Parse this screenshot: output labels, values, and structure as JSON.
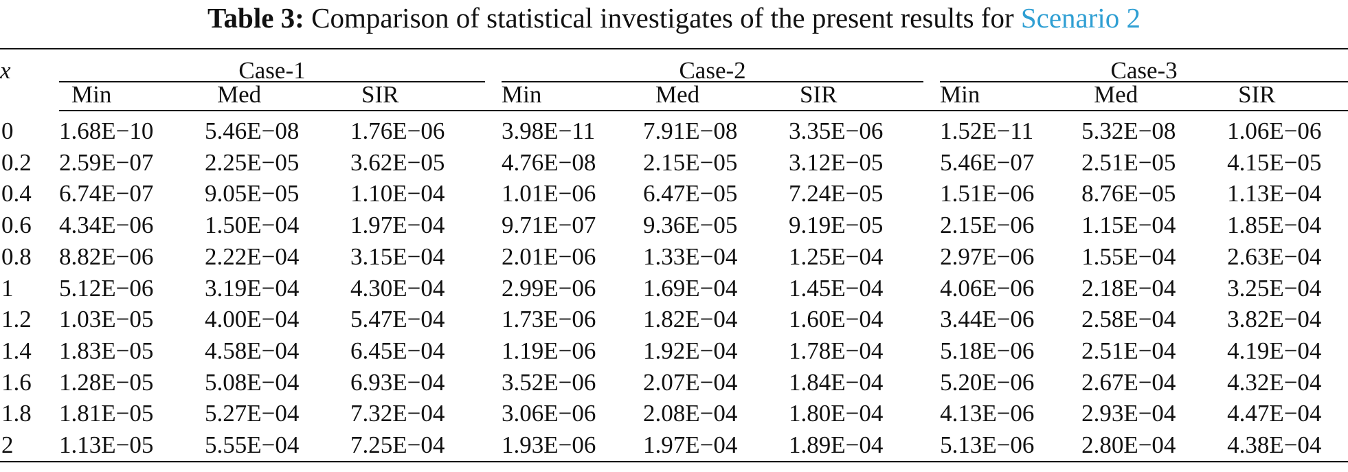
{
  "caption": {
    "label": "Table 3:",
    "text": "Comparison of statistical investigates of the present results for",
    "link": "Scenario 2"
  },
  "table": {
    "x_header": "x",
    "cases": [
      "Case-1",
      "Case-2",
      "Case-3"
    ],
    "subheaders": [
      "Min",
      "Med",
      "SIR"
    ],
    "rows": [
      {
        "x": "0",
        "values": [
          "1.68E−10",
          "5.46E−08",
          "1.76E−06",
          "3.98E−11",
          "7.91E−08",
          "3.35E−06",
          "1.52E−11",
          "5.32E−08",
          "1.06E−06"
        ]
      },
      {
        "x": "0.2",
        "values": [
          "2.59E−07",
          "2.25E−05",
          "3.62E−05",
          "4.76E−08",
          "2.15E−05",
          "3.12E−05",
          "5.46E−07",
          "2.51E−05",
          "4.15E−05"
        ]
      },
      {
        "x": "0.4",
        "values": [
          "6.74E−07",
          "9.05E−05",
          "1.10E−04",
          "1.01E−06",
          "6.47E−05",
          "7.24E−05",
          "1.51E−06",
          "8.76E−05",
          "1.13E−04"
        ]
      },
      {
        "x": "0.6",
        "values": [
          "4.34E−06",
          "1.50E−04",
          "1.97E−04",
          "9.71E−07",
          "9.36E−05",
          "9.19E−05",
          "2.15E−06",
          "1.15E−04",
          "1.85E−04"
        ]
      },
      {
        "x": "0.8",
        "values": [
          "8.82E−06",
          "2.22E−04",
          "3.15E−04",
          "2.01E−06",
          "1.33E−04",
          "1.25E−04",
          "2.97E−06",
          "1.55E−04",
          "2.63E−04"
        ]
      },
      {
        "x": "1",
        "values": [
          "5.12E−06",
          "3.19E−04",
          "4.30E−04",
          "2.99E−06",
          "1.69E−04",
          "1.45E−04",
          "4.06E−06",
          "2.18E−04",
          "3.25E−04"
        ]
      },
      {
        "x": "1.2",
        "values": [
          "1.03E−05",
          "4.00E−04",
          "5.47E−04",
          "1.73E−06",
          "1.82E−04",
          "1.60E−04",
          "3.44E−06",
          "2.58E−04",
          "3.82E−04"
        ]
      },
      {
        "x": "1.4",
        "values": [
          "1.83E−05",
          "4.58E−04",
          "6.45E−04",
          "1.19E−06",
          "1.92E−04",
          "1.78E−04",
          "5.18E−06",
          "2.51E−04",
          "4.19E−04"
        ]
      },
      {
        "x": "1.6",
        "values": [
          "1.28E−05",
          "5.08E−04",
          "6.93E−04",
          "3.52E−06",
          "2.07E−04",
          "1.84E−04",
          "5.20E−06",
          "2.67E−04",
          "4.32E−04"
        ]
      },
      {
        "x": "1.8",
        "values": [
          "1.81E−05",
          "5.27E−04",
          "7.32E−04",
          "3.06E−06",
          "2.08E−04",
          "1.80E−04",
          "4.13E−06",
          "2.93E−04",
          "4.47E−04"
        ]
      },
      {
        "x": "2",
        "values": [
          "1.13E−05",
          "5.55E−04",
          "7.25E−04",
          "1.93E−06",
          "1.97E−04",
          "1.89E−04",
          "5.13E−06",
          "2.80E−04",
          "4.38E−04"
        ]
      }
    ]
  }
}
